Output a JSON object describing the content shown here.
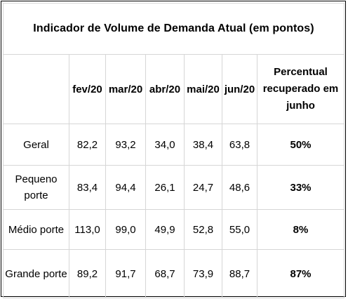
{
  "title": "Indicador de Volume de Demanda Atual (em pontos)",
  "headers": {
    "label": "",
    "months": [
      "fev/20",
      "mar/20",
      "abr/20",
      "mai/20",
      "jun/20"
    ],
    "pct": "Percentual recuperado em junho"
  },
  "rows": [
    {
      "label": "Geral",
      "values": [
        "82,2",
        "93,2",
        "34,0",
        "38,4",
        "63,8"
      ],
      "pct": "50%"
    },
    {
      "label": "Pequeno porte",
      "values": [
        "83,4",
        "94,4",
        "26,1",
        "24,7",
        "48,6"
      ],
      "pct": "33%"
    },
    {
      "label": "Médio porte",
      "values": [
        "113,0",
        "99,0",
        "49,9",
        "52,8",
        "55,0"
      ],
      "pct": "8%"
    },
    {
      "label": "Grande porte",
      "values": [
        "89,2",
        "91,7",
        "68,7",
        "73,9",
        "88,7"
      ],
      "pct": "87%"
    }
  ]
}
